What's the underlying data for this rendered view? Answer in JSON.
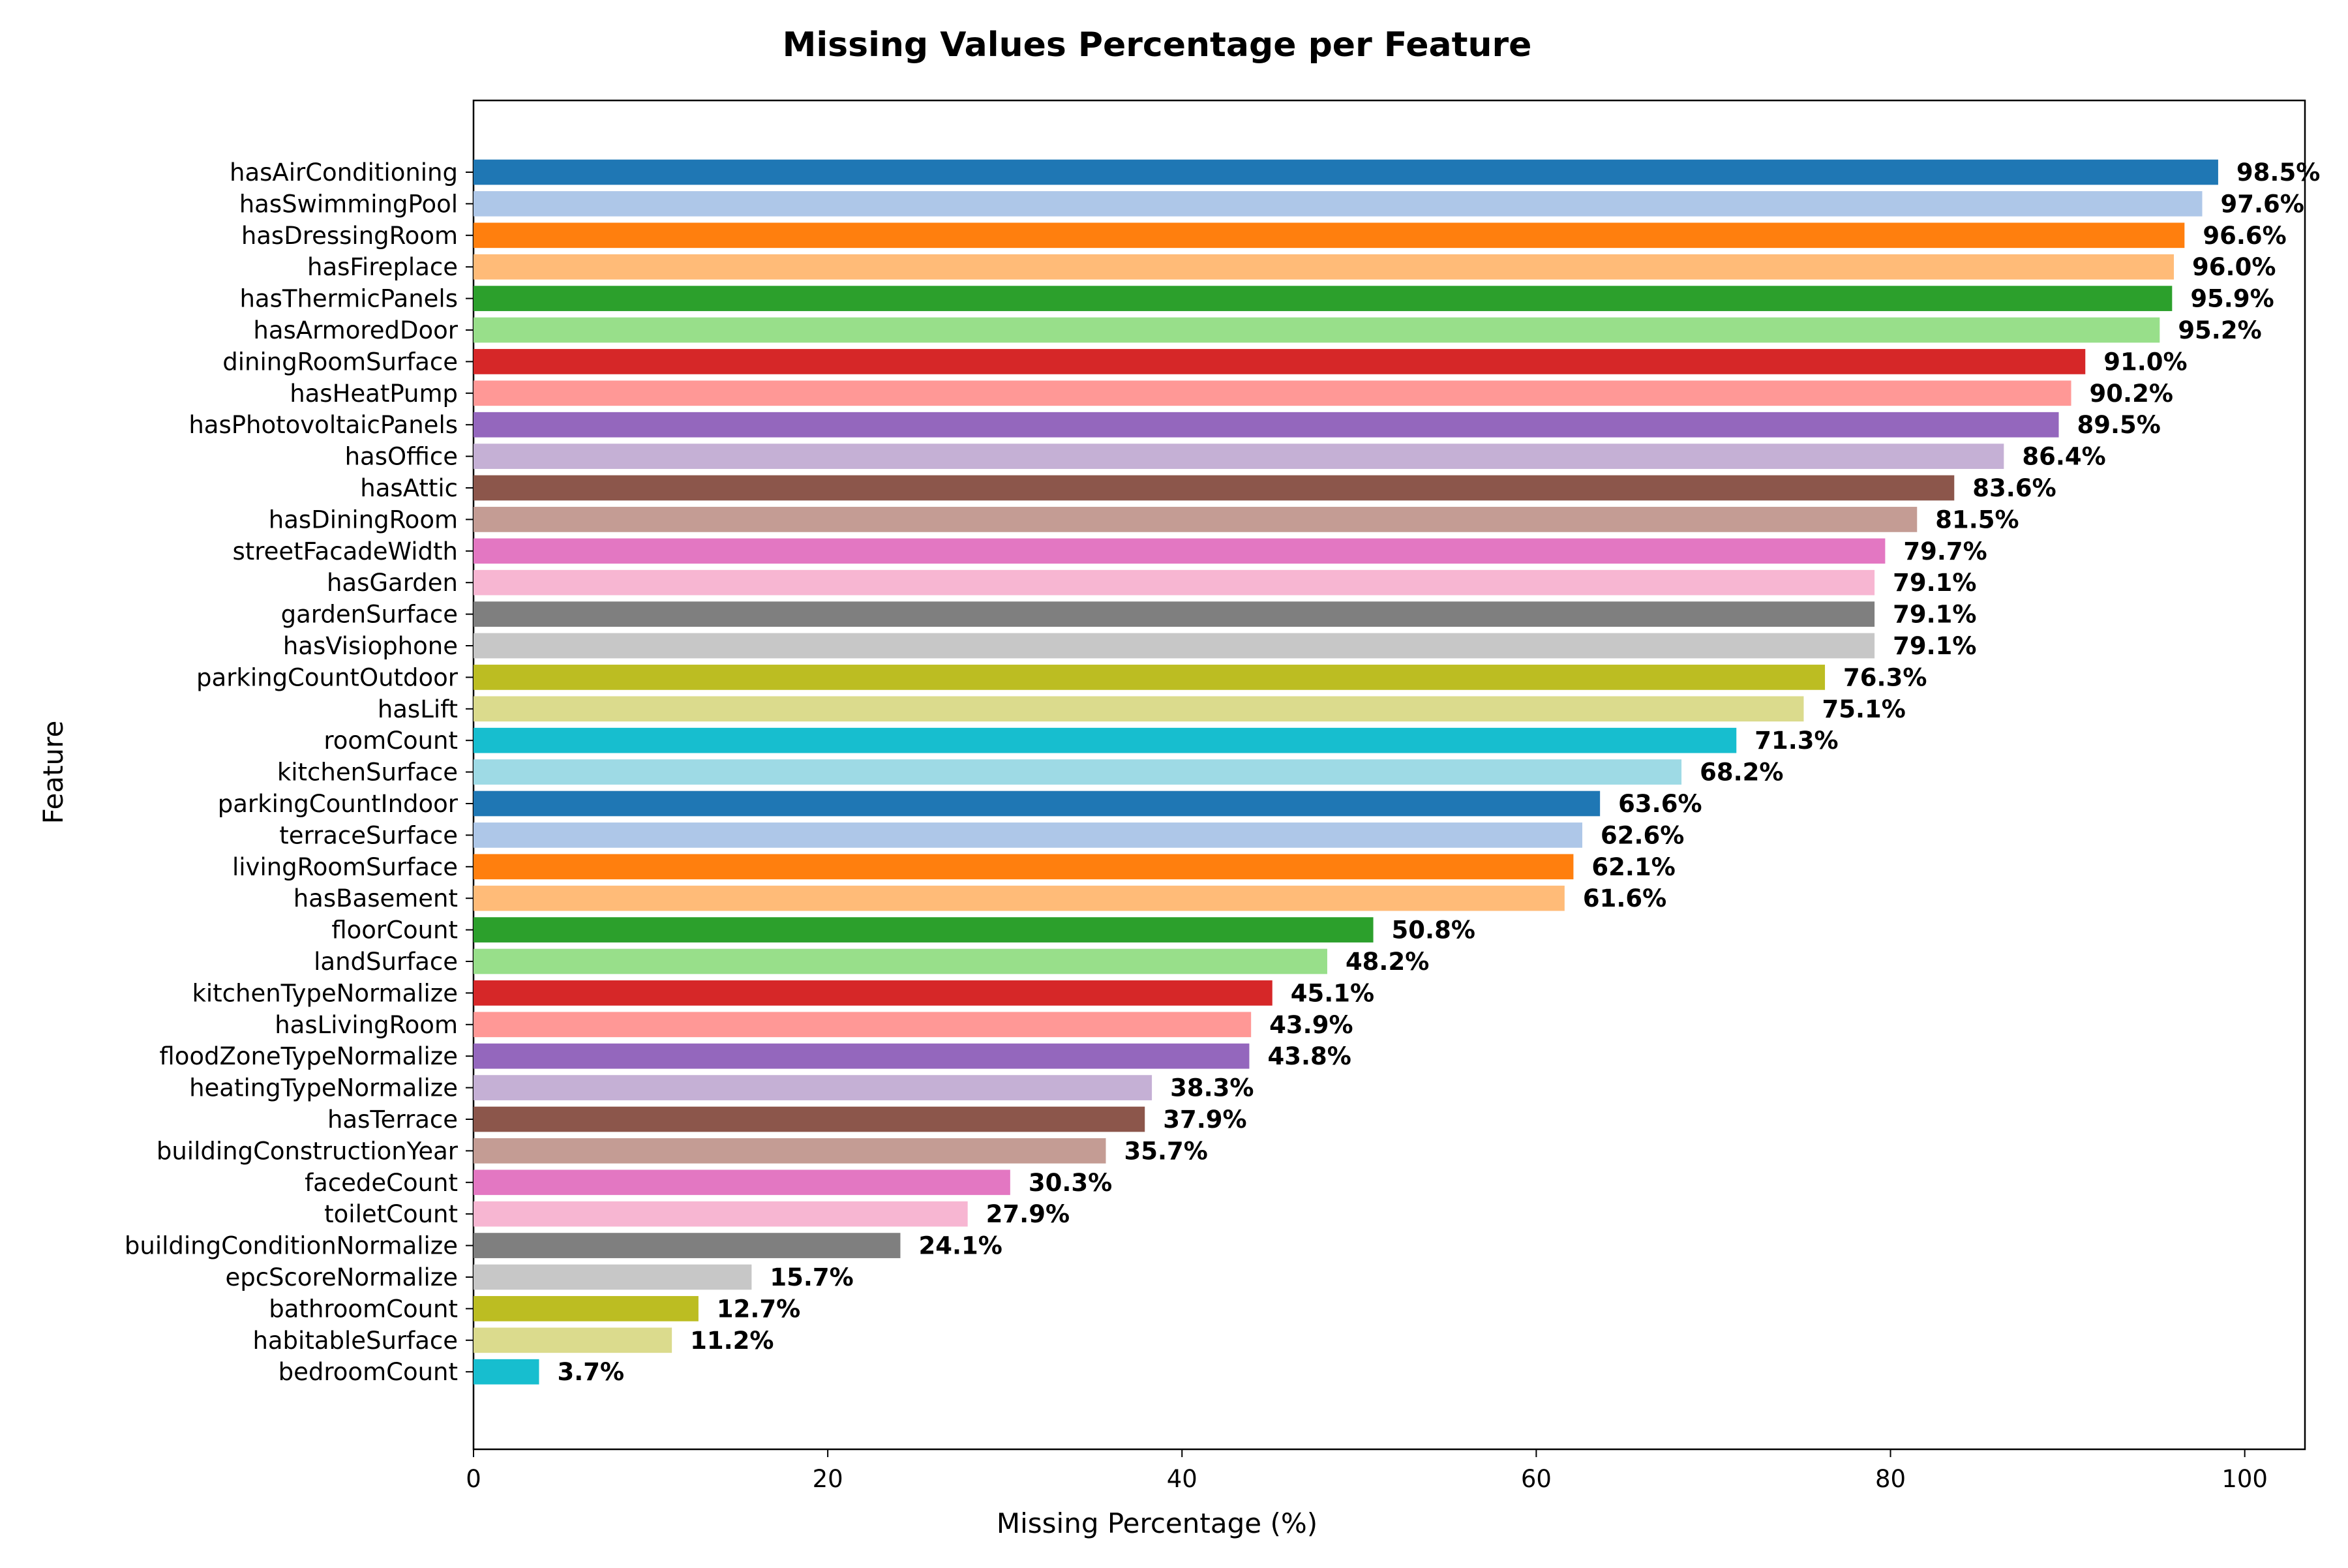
{
  "chart_data": {
    "type": "bar",
    "orientation": "horizontal",
    "title": "Missing Values Percentage per Feature",
    "xlabel": "Missing Percentage (%)",
    "ylabel": "Feature",
    "xlim": [
      0,
      103.4
    ],
    "xticks": [
      0,
      20,
      40,
      60,
      80,
      100
    ],
    "grid": false,
    "legend": "none",
    "value_label_suffix": "%",
    "categories": [
      "hasAirConditioning",
      "hasSwimmingPool",
      "hasDressingRoom",
      "hasFireplace",
      "hasThermicPanels",
      "hasArmoredDoor",
      "diningRoomSurface",
      "hasHeatPump",
      "hasPhotovoltaicPanels",
      "hasOffice",
      "hasAttic",
      "hasDiningRoom",
      "streetFacadeWidth",
      "hasGarden",
      "gardenSurface",
      "hasVisiophone",
      "parkingCountOutdoor",
      "hasLift",
      "roomCount",
      "kitchenSurface",
      "parkingCountIndoor",
      "terraceSurface",
      "livingRoomSurface",
      "hasBasement",
      "floorCount",
      "landSurface",
      "kitchenTypeNormalize",
      "hasLivingRoom",
      "floodZoneTypeNormalize",
      "heatingTypeNormalize",
      "hasTerrace",
      "buildingConstructionYear",
      "facedeCount",
      "toiletCount",
      "buildingConditionNormalize",
      "epcScoreNormalize",
      "bathroomCount",
      "habitableSurface",
      "bedroomCount"
    ],
    "values": [
      98.5,
      97.6,
      96.6,
      96.0,
      95.9,
      95.2,
      91.0,
      90.2,
      89.5,
      86.4,
      83.6,
      81.5,
      79.7,
      79.1,
      79.1,
      79.1,
      76.3,
      75.1,
      71.3,
      68.2,
      63.6,
      62.6,
      62.1,
      61.6,
      50.8,
      48.2,
      45.1,
      43.9,
      43.8,
      38.3,
      37.9,
      35.7,
      30.3,
      27.9,
      24.1,
      15.7,
      12.7,
      11.2,
      3.7
    ],
    "colors": [
      "#1f77b4",
      "#aec7e8",
      "#ff7f0e",
      "#ffbb78",
      "#2ca02c",
      "#98df8a",
      "#d62728",
      "#ff9896",
      "#9467bd",
      "#c5b0d5",
      "#8c564b",
      "#c49c94",
      "#e377c2",
      "#f7b6d2",
      "#7f7f7f",
      "#c7c7c7",
      "#bcbd22",
      "#dbdb8d",
      "#17becf",
      "#9edae5",
      "#1f77b4",
      "#aec7e8",
      "#ff7f0e",
      "#ffbb78",
      "#2ca02c",
      "#98df8a",
      "#d62728",
      "#ff9896",
      "#9467bd",
      "#c5b0d5",
      "#8c564b",
      "#c49c94",
      "#e377c2",
      "#f7b6d2",
      "#7f7f7f",
      "#c7c7c7",
      "#bcbd22",
      "#dbdb8d",
      "#17becf"
    ]
  }
}
